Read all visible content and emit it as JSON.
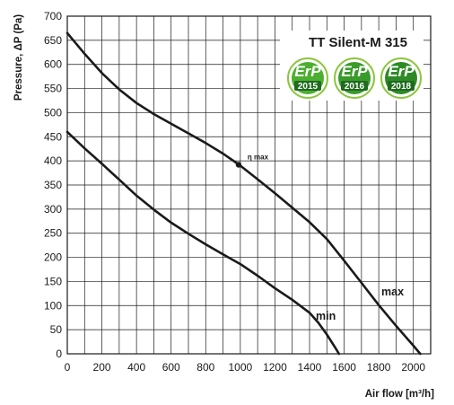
{
  "chart_data": {
    "type": "line",
    "title": "TT Silent-M 315",
    "xlabel": "Air flow [m³/h]",
    "ylabel": "Pressure, ΔP (Pa)",
    "xlim": [
      0,
      2100
    ],
    "ylim": [
      0,
      700
    ],
    "x_ticks": [
      0,
      200,
      400,
      600,
      800,
      1000,
      1200,
      1400,
      1600,
      1800,
      2000
    ],
    "y_ticks": [
      0,
      50,
      100,
      150,
      200,
      250,
      300,
      350,
      400,
      450,
      500,
      550,
      600,
      650,
      700
    ],
    "grid": true,
    "series": [
      {
        "name": "max",
        "x": [
          0,
          100,
          200,
          300,
          400,
          500,
          600,
          700,
          800,
          900,
          1000,
          1100,
          1200,
          1300,
          1400,
          1500,
          1600,
          1700,
          1800,
          1900,
          2000,
          2040
        ],
        "y": [
          665,
          622,
          582,
          548,
          520,
          497,
          477,
          457,
          437,
          415,
          390,
          362,
          333,
          303,
          273,
          238,
          193,
          147,
          101,
          58,
          17,
          0
        ]
      },
      {
        "name": "min",
        "x": [
          0,
          100,
          200,
          300,
          400,
          500,
          600,
          700,
          800,
          900,
          1000,
          1100,
          1200,
          1300,
          1400,
          1450,
          1500,
          1550,
          1570
        ],
        "y": [
          460,
          426,
          394,
          361,
          328,
          299,
          272,
          249,
          227,
          206,
          186,
          162,
          136,
          112,
          85,
          65,
          40,
          12,
          0
        ]
      }
    ],
    "annotations": [
      {
        "text": "η max",
        "x": 990,
        "y": 392
      }
    ]
  },
  "badges": [
    {
      "top": "ErP",
      "year": "2015",
      "icon": "erp-2015-badge-icon",
      "color": "#4caf2f"
    },
    {
      "top": "ErP",
      "year": "2016",
      "icon": "erp-2016-badge-icon",
      "color": "#3a9a2a"
    },
    {
      "top": "ErP",
      "year": "2018",
      "icon": "erp-2018-badge-icon",
      "color": "#2e8a26"
    }
  ],
  "colors": {
    "curve": "#1a1a1a",
    "grid": "#1a1a1a",
    "badge_ring": "#8cc63f"
  }
}
